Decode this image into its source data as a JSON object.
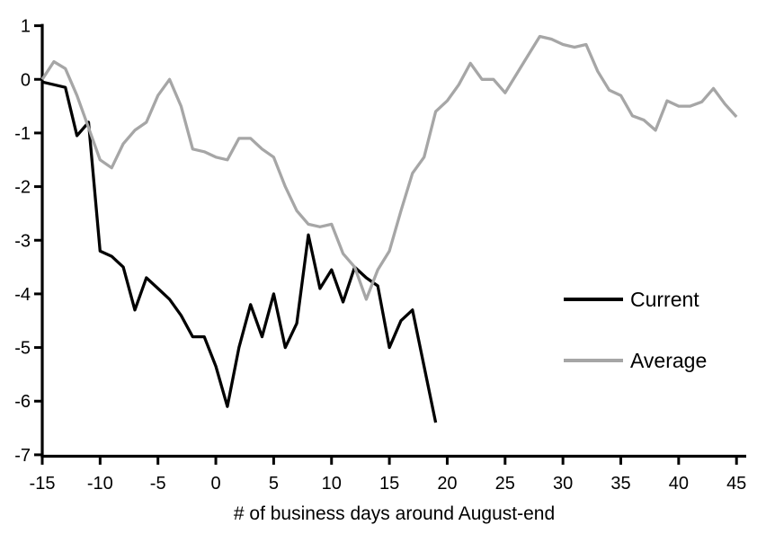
{
  "colors": {
    "current_line": "#000000",
    "average_line": "#a6a6a6",
    "axis": "#000000",
    "background": "#ffffff"
  },
  "chart_data": {
    "type": "line",
    "title": "",
    "xlabel": "# of business days around August-end",
    "ylabel": "",
    "xlim": [
      -15,
      45
    ],
    "ylim": [
      -7,
      1
    ],
    "x_ticks": [
      -15,
      -10,
      -5,
      0,
      5,
      10,
      15,
      20,
      25,
      30,
      35,
      40,
      45
    ],
    "y_ticks": [
      1,
      0,
      -1,
      -2,
      -3,
      -4,
      -5,
      -6,
      -7
    ],
    "grid": false,
    "legend_position": "right-middle",
    "series": [
      {
        "name": "Current",
        "color": "#000000",
        "x": [
          -15,
          -14,
          -13,
          -12,
          -11,
          -10,
          -9,
          -8,
          -7,
          -6,
          -5,
          -4,
          -3,
          -2,
          -1,
          0,
          1,
          2,
          3,
          4,
          5,
          6,
          7,
          8,
          9,
          10,
          11,
          12,
          13,
          14,
          15,
          16,
          17,
          18,
          19
        ],
        "values": [
          -0.05,
          -0.1,
          -0.15,
          -1.05,
          -0.8,
          -3.2,
          -3.3,
          -3.5,
          -4.3,
          -3.7,
          -3.9,
          -4.1,
          -4.4,
          -4.8,
          -4.8,
          -5.35,
          -6.1,
          -5.0,
          -4.2,
          -4.8,
          -4.0,
          -5.0,
          -4.55,
          -2.9,
          -3.9,
          -3.55,
          -4.15,
          -3.5,
          -3.7,
          -3.85,
          -5.0,
          -4.5,
          -4.3,
          -5.35,
          -6.4
        ]
      },
      {
        "name": "Average",
        "color": "#a6a6a6",
        "x": [
          -15,
          -14,
          -13,
          -12,
          -11,
          -10,
          -9,
          -8,
          -7,
          -6,
          -5,
          -4,
          -3,
          -2,
          -1,
          0,
          1,
          2,
          3,
          4,
          5,
          6,
          7,
          8,
          9,
          10,
          11,
          12,
          13,
          14,
          15,
          16,
          17,
          18,
          19,
          20,
          21,
          22,
          23,
          24,
          25,
          26,
          27,
          28,
          29,
          30,
          31,
          32,
          33,
          34,
          35,
          36,
          37,
          38,
          39,
          40,
          41,
          42,
          43,
          44,
          45
        ],
        "values": [
          0.0,
          0.33,
          0.2,
          -0.3,
          -0.9,
          -1.5,
          -1.65,
          -1.2,
          -0.95,
          -0.8,
          -0.3,
          0.0,
          -0.5,
          -1.3,
          -1.35,
          -1.45,
          -1.5,
          -1.1,
          -1.1,
          -1.3,
          -1.45,
          -2.0,
          -2.45,
          -2.7,
          -2.75,
          -2.7,
          -3.25,
          -3.5,
          -4.1,
          -3.55,
          -3.2,
          -2.45,
          -1.75,
          -1.45,
          -0.6,
          -0.4,
          -0.1,
          0.3,
          0.0,
          0.0,
          -0.25,
          0.1,
          0.45,
          0.8,
          0.75,
          0.65,
          0.6,
          0.65,
          0.15,
          -0.2,
          -0.3,
          -0.68,
          -0.76,
          -0.95,
          -0.4,
          -0.5,
          -0.5,
          -0.42,
          -0.17,
          -0.46,
          -0.7
        ]
      }
    ]
  }
}
